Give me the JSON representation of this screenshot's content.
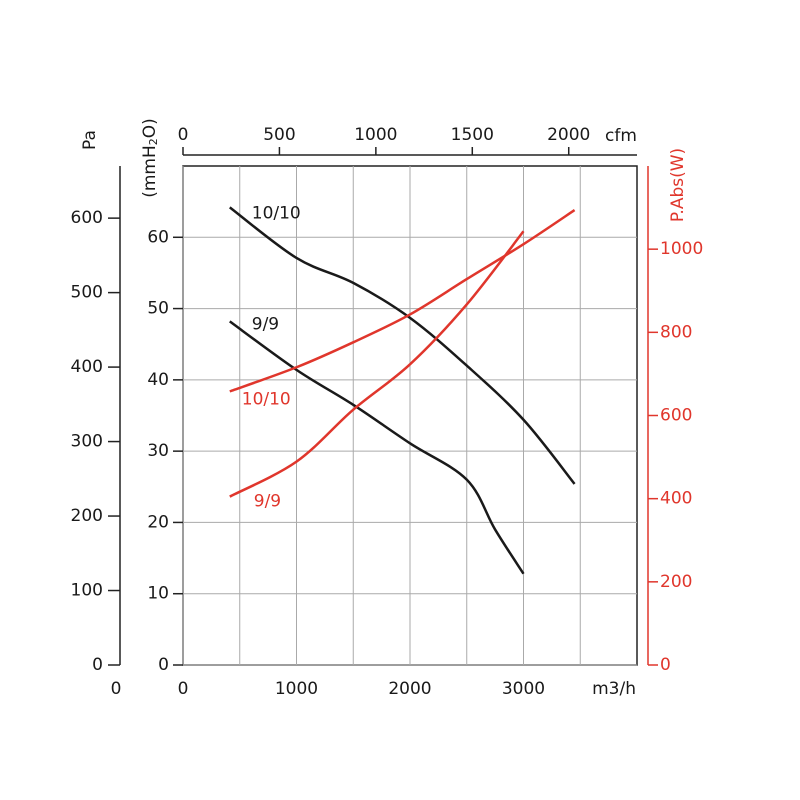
{
  "chart_data": {
    "type": "line",
    "x_label": "m3/h",
    "x2_label": "cfm",
    "y_label_parts": [
      "(mmH",
      "2",
      "O)"
    ],
    "y3_label": "Pa",
    "y2_label": "P.Abs(W)",
    "corner_label": "0",
    "xlim": [
      0,
      4000
    ],
    "xticks": [
      0,
      1000,
      2000,
      3000
    ],
    "xminor": [
      500,
      1500,
      2500,
      3500
    ],
    "x2lim": [
      0,
      2354
    ],
    "x2ticks": [
      0,
      500,
      1000,
      1500,
      2000
    ],
    "ylim": [
      0,
      70
    ],
    "yticks": [
      0,
      10,
      20,
      30,
      40,
      50,
      60
    ],
    "y3lim": [
      0,
      670
    ],
    "y3ticks": [
      0,
      100,
      200,
      300,
      400,
      500,
      600
    ],
    "y2lim": [
      0,
      1200
    ],
    "y2ticks": [
      0,
      200,
      400,
      600,
      800,
      1000
    ],
    "grid": true,
    "series": [
      {
        "name": "10/10",
        "color": "#1a1a1a",
        "axis": "y",
        "x": [
          412,
          1000,
          1500,
          2000,
          2500,
          3000,
          3450
        ],
        "values": [
          64.2,
          57.1,
          53.6,
          48.7,
          42,
          34.4,
          25.4
        ]
      },
      {
        "name": "9/9",
        "color": "#1a1a1a",
        "axis": "y",
        "x": [
          412,
          1000,
          1500,
          2000,
          2500,
          2750,
          3000
        ],
        "values": [
          48.2,
          41.4,
          36.5,
          31.1,
          26,
          19,
          12.8
        ]
      },
      {
        "name": "10/10",
        "color": "#e0362c",
        "axis": "y2",
        "x": [
          412,
          1000,
          1500,
          2000,
          2500,
          3000,
          3450
        ],
        "values": [
          658,
          716,
          776,
          843,
          928,
          1012,
          1094
        ]
      },
      {
        "name": "9/9",
        "color": "#e0362c",
        "axis": "y2",
        "x": [
          412,
          1000,
          1500,
          2000,
          2500,
          3000
        ],
        "values": [
          405,
          489,
          614,
          723,
          867,
          1043
        ]
      }
    ]
  }
}
